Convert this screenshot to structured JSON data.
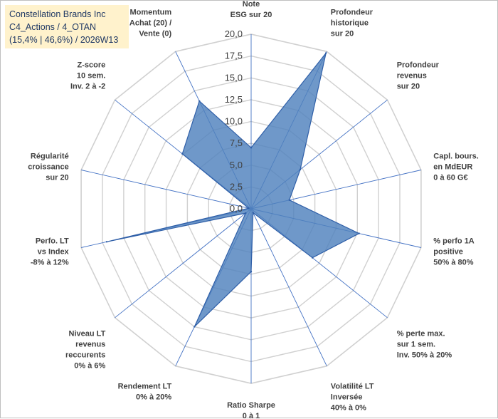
{
  "title_box": {
    "line1": "Constellation Brands Inc",
    "line2": "C4_Actions / 4_OTAN",
    "line3": "(15,4% | 46,6%) / 2026W13"
  },
  "colors": {
    "fill": "#4f81bd",
    "stroke": "#2f5fa8",
    "grid": "#d0d0d0",
    "title_bg": "#fff2cc"
  },
  "chart_data": {
    "type": "radar",
    "rmax": 20,
    "tick_labels": [
      "0,0",
      "2,5",
      "5,0",
      "7,5",
      "10,0",
      "12,5",
      "15,0",
      "17,5",
      "20,0"
    ],
    "axes": [
      {
        "label": [
          "Note",
          "ESG sur 20"
        ],
        "value": 7.0
      },
      {
        "label": [
          "Profondeur",
          "historique",
          "sur 20"
        ],
        "value": 19.8
      },
      {
        "label": [
          "Profondeur",
          "revenus",
          "sur 20"
        ],
        "value": 7.2
      },
      {
        "label": [
          "Capl. bours.",
          "en MdEUR",
          "0 à 60 G€"
        ],
        "value": 4.5
      },
      {
        "label": [
          "% perfo 1A",
          "positive",
          "50% à 80%"
        ],
        "value": 12.7
      },
      {
        "label": [
          "% perte max.",
          "sur 1 sem.",
          "Inv. 50% à 20%"
        ],
        "value": 9.0
      },
      {
        "label": [
          "Volatilité LT",
          "Inversée",
          "40% à 0%"
        ],
        "value": 0.5
      },
      {
        "label": [
          "Ratio Sharpe",
          "0 à 1"
        ],
        "value": 7.2
      },
      {
        "label": [
          "Rendement LT",
          "0% à 20%"
        ],
        "value": 15.0
      },
      {
        "label": [
          "Niveau LT",
          "revenus",
          "reccurents",
          "0% à 6%"
        ],
        "value": 0.8
      },
      {
        "label": [
          "Perfo. LT",
          "vs Index",
          "-8% à 12%"
        ],
        "value": 17.0
      },
      {
        "label": [
          "Régularité",
          "croissance",
          "sur 20"
        ],
        "value": 0.3
      },
      {
        "label": [
          "Z-score",
          "10 sem.",
          "Inv. 2 à -2"
        ],
        "value": 10.1
      },
      {
        "label": [
          "Momentum",
          "Achat (20) /",
          "Vente (0)"
        ],
        "value": 13.7
      }
    ]
  }
}
